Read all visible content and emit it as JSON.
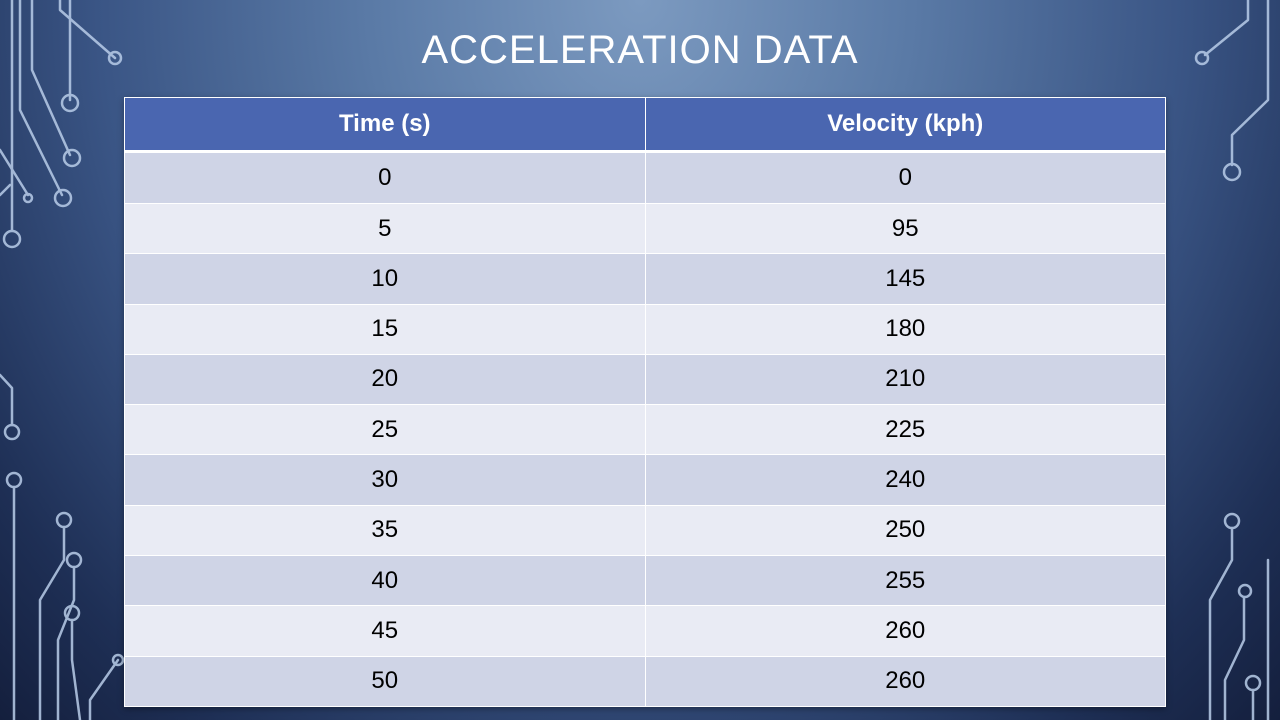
{
  "slide": {
    "title": "ACCELERATION DATA"
  },
  "table": {
    "headers": [
      "Time (s)",
      "Velocity (kph)"
    ],
    "rows": [
      [
        "0",
        "0"
      ],
      [
        "5",
        "95"
      ],
      [
        "10",
        "145"
      ],
      [
        "15",
        "180"
      ],
      [
        "20",
        "210"
      ],
      [
        "25",
        "225"
      ],
      [
        "30",
        "240"
      ],
      [
        "35",
        "250"
      ],
      [
        "40",
        "255"
      ],
      [
        "45",
        "260"
      ],
      [
        "50",
        "260"
      ]
    ]
  },
  "colors": {
    "header_bg": "#4a66b0",
    "row_odd": "#cfd4e6",
    "row_even": "#e9ebf4",
    "circuit_lines": "#b8cbe8"
  }
}
